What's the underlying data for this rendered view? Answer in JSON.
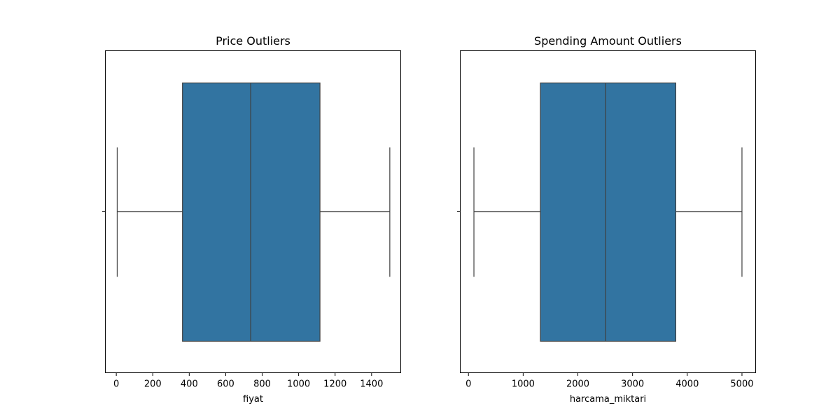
{
  "chart_data": [
    {
      "type": "box",
      "title": "Price Outliers",
      "xlabel": "fiyat",
      "ylabel": "",
      "xlim": [
        -60,
        1560
      ],
      "xticks": [
        0,
        200,
        400,
        600,
        800,
        1000,
        1200,
        1400
      ],
      "tick_labels": [
        "0",
        "200",
        "400",
        "600",
        "800",
        "1000",
        "1200",
        "1400"
      ],
      "whisker_low": 5,
      "q1": 363,
      "median": 737,
      "q3": 1117,
      "whisker_high": 1500,
      "grid": false,
      "color": "#3274a1"
    },
    {
      "type": "box",
      "title": "Spending Amount Outliers",
      "xlabel": "harcama_miktari",
      "ylabel": "",
      "xlim": [
        -150,
        5250
      ],
      "xticks": [
        0,
        1000,
        2000,
        3000,
        4000,
        5000
      ],
      "tick_labels": [
        "0",
        "1000",
        "2000",
        "3000",
        "4000",
        "5000"
      ],
      "whisker_low": 100,
      "q1": 1315,
      "median": 2510,
      "q3": 3790,
      "whisker_high": 5000,
      "grid": false,
      "color": "#3274a1"
    }
  ]
}
